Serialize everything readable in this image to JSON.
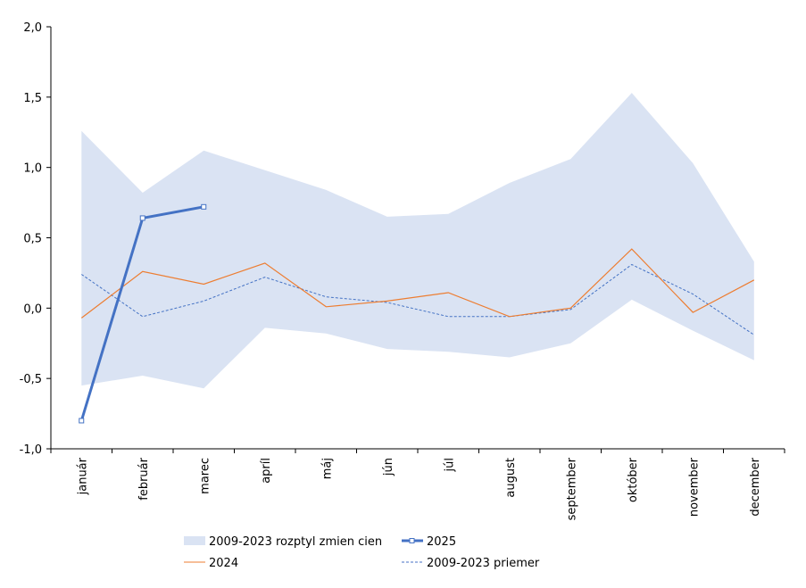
{
  "chart_data": {
    "type": "line",
    "title": "",
    "xlabel": "",
    "ylabel": "",
    "categories": [
      "január",
      "február",
      "marec",
      "apríl",
      "máj",
      "jún",
      "júl",
      "august",
      "september",
      "október",
      "november",
      "december"
    ],
    "ylim": [
      -1.0,
      2.0
    ],
    "yticks": [
      "-1,0",
      "-0,5",
      "0,0",
      "0,5",
      "1,0",
      "1,5",
      "2,0"
    ],
    "grid": false,
    "legend_position": "bottom",
    "band": {
      "name": "2009-2023 rozptyl zmien cien",
      "color": "#dae3f3",
      "upper": [
        1.26,
        0.82,
        1.12,
        0.98,
        0.84,
        0.65,
        0.67,
        0.89,
        1.06,
        1.53,
        1.03,
        0.33
      ],
      "lower": [
        -0.55,
        -0.48,
        -0.57,
        -0.14,
        -0.18,
        -0.29,
        -0.31,
        -0.35,
        -0.25,
        0.06,
        -0.16,
        -0.37
      ]
    },
    "series": [
      {
        "name": "2025",
        "color": "#4472c4",
        "style": "bold-markers",
        "values": [
          -0.8,
          0.64,
          0.72,
          null,
          null,
          null,
          null,
          null,
          null,
          null,
          null,
          null
        ]
      },
      {
        "name": "2024",
        "color": "#ed7d31",
        "style": "solid",
        "values": [
          -0.07,
          0.26,
          0.17,
          0.32,
          0.01,
          0.05,
          0.11,
          -0.06,
          0.0,
          0.42,
          -0.03,
          0.2
        ]
      },
      {
        "name": "2009-2023 priemer",
        "color": "#4472c4",
        "style": "dashed",
        "values": [
          0.24,
          -0.06,
          0.05,
          0.22,
          0.08,
          0.04,
          -0.06,
          -0.06,
          -0.01,
          0.31,
          0.1,
          -0.19
        ]
      }
    ]
  },
  "legend": {
    "band_label": "2009-2023 rozptyl zmien cien",
    "s2025_label": "2025",
    "s2024_label": "2024",
    "avg_label": "2009-2023 priemer"
  }
}
